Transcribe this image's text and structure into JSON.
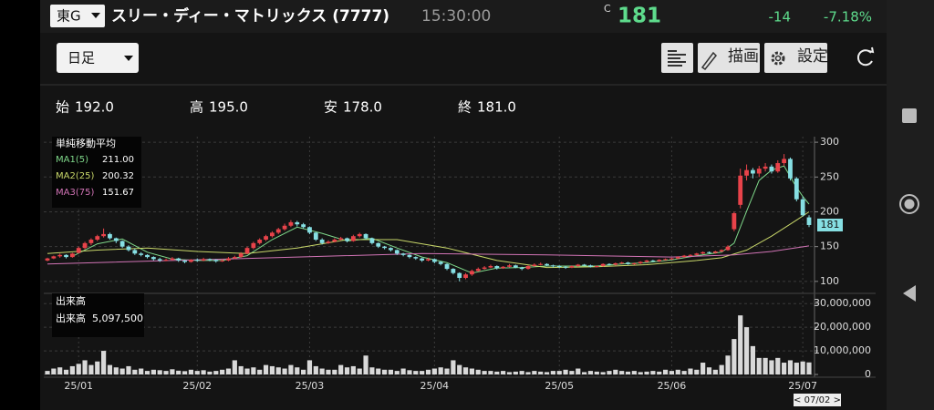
{
  "header": {
    "market": "東G",
    "name": "スリー・ディー・マトリックス (7777)",
    "time": "15:30:00",
    "price_flag": "C",
    "price": 181,
    "change": -14,
    "change_pct": "-7.18%"
  },
  "toolbar": {
    "period": "日足",
    "draw": "描画",
    "settings": "設定"
  },
  "ohlc_summary": [
    {
      "label": "始",
      "value": "192.0"
    },
    {
      "label": "高",
      "value": "195.0"
    },
    {
      "label": "安",
      "value": "178.0"
    },
    {
      "label": "終",
      "value": "181.0"
    }
  ],
  "chart_data": {
    "type": "candlestick",
    "categories": [
      null,
      null,
      null,
      null,
      null,
      "25/01",
      null,
      null,
      null,
      null,
      null,
      null,
      null,
      null,
      null,
      null,
      null,
      null,
      null,
      null,
      null,
      null,
      null,
      null,
      "25/02",
      null,
      null,
      null,
      null,
      null,
      null,
      null,
      null,
      null,
      null,
      null,
      null,
      null,
      null,
      null,
      null,
      null,
      "25/03",
      null,
      null,
      null,
      null,
      null,
      null,
      null,
      null,
      null,
      null,
      null,
      null,
      null,
      null,
      null,
      null,
      null,
      null,
      null,
      "25/04",
      null,
      null,
      null,
      null,
      null,
      null,
      null,
      null,
      null,
      null,
      null,
      null,
      null,
      null,
      null,
      null,
      null,
      null,
      null,
      "25/05",
      null,
      null,
      null,
      null,
      null,
      null,
      null,
      null,
      null,
      null,
      null,
      null,
      null,
      null,
      null,
      null,
      null,
      "25/06",
      null,
      null,
      null,
      null,
      null,
      null,
      null,
      null,
      null,
      null,
      null,
      null,
      null,
      null,
      null,
      null,
      null,
      null,
      null,
      null,
      "25/07",
      null
    ],
    "ohlc": [
      [
        130,
        134,
        129,
        133
      ],
      [
        133,
        137,
        132,
        136
      ],
      [
        136,
        140,
        134,
        138
      ],
      [
        138,
        139,
        133,
        135
      ],
      [
        135,
        141,
        134,
        140
      ],
      [
        141,
        150,
        140,
        148
      ],
      [
        148,
        157,
        146,
        155
      ],
      [
        155,
        162,
        152,
        160
      ],
      [
        160,
        167,
        158,
        165
      ],
      [
        165,
        176,
        163,
        168
      ],
      [
        168,
        170,
        160,
        162
      ],
      [
        162,
        163,
        155,
        158
      ],
      [
        158,
        159,
        148,
        150
      ],
      [
        150,
        152,
        143,
        145
      ],
      [
        145,
        147,
        138,
        140
      ],
      [
        140,
        142,
        136,
        138
      ],
      [
        138,
        139,
        133,
        135
      ],
      [
        135,
        136,
        130,
        132
      ],
      [
        132,
        134,
        128,
        130
      ],
      [
        130,
        133,
        129,
        131
      ],
      [
        131,
        135,
        130,
        133
      ],
      [
        133,
        134,
        128,
        130
      ],
      [
        130,
        131,
        126,
        128
      ],
      [
        128,
        132,
        127,
        131
      ],
      [
        131,
        133,
        128,
        130
      ],
      [
        130,
        134,
        129,
        132
      ],
      [
        132,
        133,
        129,
        131
      ],
      [
        131,
        132,
        127,
        129
      ],
      [
        129,
        132,
        128,
        130
      ],
      [
        130,
        135,
        129,
        133
      ],
      [
        133,
        137,
        132,
        135
      ],
      [
        135,
        142,
        134,
        140
      ],
      [
        140,
        150,
        139,
        148
      ],
      [
        148,
        157,
        146,
        155
      ],
      [
        155,
        162,
        153,
        160
      ],
      [
        160,
        167,
        158,
        165
      ],
      [
        165,
        172,
        163,
        170
      ],
      [
        170,
        177,
        168,
        175
      ],
      [
        175,
        183,
        173,
        180
      ],
      [
        180,
        188,
        178,
        185
      ],
      [
        185,
        187,
        179,
        182
      ],
      [
        182,
        184,
        176,
        178
      ],
      [
        178,
        179,
        168,
        170
      ],
      [
        170,
        171,
        158,
        160
      ],
      [
        160,
        162,
        153,
        155
      ],
      [
        155,
        159,
        154,
        157
      ],
      [
        157,
        162,
        156,
        160
      ],
      [
        160,
        164,
        159,
        162
      ],
      [
        162,
        163,
        156,
        158
      ],
      [
        158,
        167,
        157,
        165
      ],
      [
        165,
        170,
        163,
        168
      ],
      [
        168,
        169,
        160,
        162
      ],
      [
        162,
        163,
        153,
        155
      ],
      [
        155,
        156,
        148,
        150
      ],
      [
        150,
        151,
        146,
        148
      ],
      [
        148,
        149,
        143,
        145
      ],
      [
        145,
        146,
        138,
        140
      ],
      [
        140,
        141,
        136,
        138
      ],
      [
        138,
        139,
        133,
        135
      ],
      [
        135,
        136,
        131,
        133
      ],
      [
        133,
        134,
        128,
        130
      ],
      [
        130,
        134,
        129,
        132
      ],
      [
        132,
        133,
        126,
        128
      ],
      [
        128,
        129,
        123,
        125
      ],
      [
        125,
        126,
        116,
        118
      ],
      [
        118,
        119,
        110,
        112
      ],
      [
        112,
        113,
        100,
        105
      ],
      [
        105,
        112,
        103,
        110
      ],
      [
        110,
        117,
        108,
        115
      ],
      [
        115,
        120,
        114,
        118
      ],
      [
        118,
        122,
        117,
        120
      ],
      [
        120,
        124,
        119,
        122
      ],
      [
        122,
        123,
        117,
        119
      ],
      [
        119,
        122,
        118,
        121
      ],
      [
        121,
        125,
        120,
        123
      ],
      [
        123,
        124,
        119,
        120
      ],
      [
        120,
        121,
        116,
        118
      ],
      [
        118,
        123,
        117,
        122
      ],
      [
        122,
        126,
        121,
        124
      ],
      [
        124,
        127,
        123,
        125
      ],
      [
        125,
        126,
        122,
        123
      ],
      [
        123,
        124,
        120,
        122
      ],
      [
        122,
        123,
        119,
        121
      ],
      [
        121,
        122,
        118,
        120
      ],
      [
        120,
        123,
        119,
        122
      ],
      [
        122,
        125,
        121,
        124
      ],
      [
        124,
        125,
        122,
        123
      ],
      [
        123,
        124,
        120,
        121
      ],
      [
        121,
        123,
        120,
        122
      ],
      [
        122,
        126,
        121,
        125
      ],
      [
        125,
        126,
        123,
        124
      ],
      [
        124,
        127,
        123,
        126
      ],
      [
        126,
        128,
        125,
        127
      ],
      [
        127,
        128,
        124,
        125
      ],
      [
        125,
        127,
        124,
        126
      ],
      [
        126,
        129,
        125,
        128
      ],
      [
        128,
        131,
        127,
        130
      ],
      [
        130,
        131,
        128,
        129
      ],
      [
        129,
        132,
        128,
        131
      ],
      [
        131,
        133,
        130,
        132
      ],
      [
        132,
        134,
        131,
        133
      ],
      [
        133,
        136,
        132,
        135
      ],
      [
        135,
        138,
        134,
        137
      ],
      [
        137,
        139,
        136,
        138
      ],
      [
        138,
        141,
        137,
        140
      ],
      [
        140,
        143,
        139,
        142
      ],
      [
        142,
        143,
        140,
        141
      ],
      [
        141,
        144,
        140,
        143
      ],
      [
        143,
        146,
        142,
        145
      ],
      [
        145,
        152,
        144,
        150
      ],
      [
        175,
        200,
        172,
        198
      ],
      [
        210,
        262,
        205,
        252
      ],
      [
        252,
        268,
        245,
        260
      ],
      [
        260,
        263,
        248,
        255
      ],
      [
        255,
        266,
        250,
        262
      ],
      [
        262,
        270,
        258,
        265
      ],
      [
        265,
        268,
        255,
        258
      ],
      [
        258,
        274,
        256,
        270
      ],
      [
        270,
        283,
        266,
        276
      ],
      [
        276,
        278,
        245,
        248
      ],
      [
        248,
        250,
        215,
        218
      ],
      [
        218,
        222,
        193,
        195
      ],
      [
        192,
        195,
        178,
        181
      ]
    ],
    "up_color": "#e8434a",
    "down_color": "#86dfe3",
    "ylim": [
      88,
      308
    ],
    "yticks": [
      100,
      150,
      200,
      250,
      300
    ],
    "grid": true,
    "last_price_color": "#86dfe3",
    "moving_averages": {
      "title": "単純移動平均",
      "series": [
        {
          "name": "MA1(5)",
          "legend_value": "211.00",
          "color": "#7fd88a",
          "x": [
            4,
            8,
            12,
            16,
            20,
            24,
            28,
            32,
            36,
            40,
            44,
            48,
            52,
            56,
            60,
            64,
            68,
            72,
            76,
            80,
            84,
            88,
            92,
            96,
            100,
            104,
            108,
            110,
            112,
            114,
            116,
            118,
            120,
            121,
            122
          ],
          "values": [
            136,
            154,
            161,
            142,
            132,
            130,
            130,
            137,
            160,
            178,
            169,
            158,
            162,
            148,
            135,
            127,
            112,
            119,
            120,
            122,
            122,
            122,
            125,
            127,
            131,
            137,
            142,
            155,
            201,
            245,
            260,
            266,
            235,
            222,
            211
          ]
        },
        {
          "name": "MA2(25)",
          "legend_value": "200.32",
          "color": "#c9d86a",
          "x": [
            0,
            8,
            16,
            24,
            32,
            40,
            48,
            56,
            64,
            72,
            80,
            88,
            96,
            104,
            108,
            112,
            116,
            120,
            122
          ],
          "values": [
            140,
            145,
            148,
            143,
            140,
            148,
            160,
            160,
            148,
            130,
            120,
            121,
            124,
            130,
            134,
            145,
            165,
            188,
            200
          ]
        },
        {
          "name": "MA3(75)",
          "legend_value": "151.67",
          "color": "#d274b6",
          "x": [
            0,
            20,
            40,
            60,
            80,
            100,
            110,
            116,
            122
          ],
          "values": [
            125,
            130,
            135,
            140,
            138,
            135,
            138,
            143,
            151
          ]
        }
      ]
    },
    "volume_panel": {
      "title": "出来高",
      "legend_name": "出来高",
      "legend_value": "5,097,500",
      "color": "#d9d9d9",
      "ylim": [
        0,
        32000000
      ],
      "yticks": [
        0,
        {
          "value": 10000000,
          "label": "10,000,000"
        },
        {
          "value": 20000000,
          "label": "20,000,000"
        },
        {
          "value": 30000000,
          "label": "30,000,000"
        }
      ],
      "values": [
        1500000,
        2500000,
        3000000,
        2000000,
        3500000,
        4500000,
        6000000,
        4000000,
        5500000,
        10000000,
        4000000,
        3000000,
        2500000,
        3500000,
        2000000,
        2500000,
        1500000,
        2000000,
        1800000,
        1500000,
        2200000,
        1600000,
        1400000,
        2000000,
        1500000,
        1800000,
        1200000,
        1500000,
        2000000,
        2500000,
        6000000,
        3500000,
        2500000,
        3000000,
        2000000,
        4000000,
        3500000,
        3000000,
        2500000,
        4000000,
        3000000,
        2000000,
        6000000,
        3500000,
        2500000,
        2000000,
        2000000,
        4000000,
        3000000,
        3500000,
        2500000,
        8000000,
        3000000,
        2500000,
        2000000,
        2000000,
        1500000,
        2500000,
        1800000,
        1500000,
        1500000,
        2000000,
        2500000,
        3000000,
        2500000,
        6000000,
        4000000,
        3000000,
        2500000,
        2000000,
        1500000,
        1500000,
        1200000,
        1500000,
        1000000,
        1200000,
        1500000,
        1000000,
        1500000,
        1200000,
        1000000,
        1500000,
        1500000,
        2000000,
        1500000,
        2500000,
        1000000,
        1500000,
        1200000,
        1000000,
        1500000,
        2000000,
        1500000,
        1200000,
        1500000,
        1000000,
        1200000,
        1500000,
        1200000,
        2000000,
        1500000,
        2000000,
        1500000,
        2500000,
        2000000,
        5000000,
        3000000,
        2000000,
        4000000,
        8000000,
        15000000,
        25000000,
        20000000,
        12000000,
        7000000,
        7000000,
        6000000,
        7000000,
        5000000,
        6000000,
        5000000,
        5500000,
        5097500
      ]
    },
    "cursor_label": "< 07/02 >"
  }
}
